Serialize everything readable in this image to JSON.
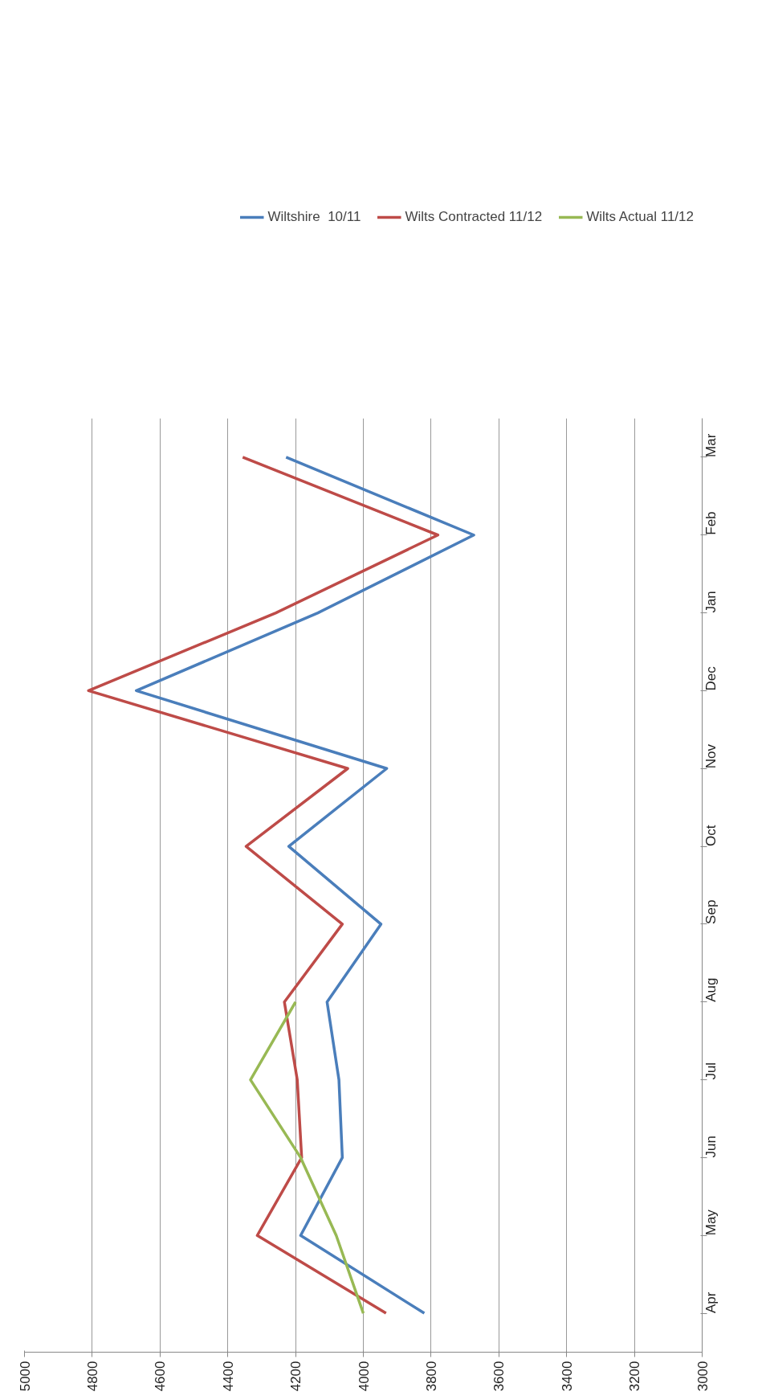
{
  "chart_data": {
    "type": "line",
    "orientation": "horizontal",
    "categories": [
      "Mar",
      "Feb",
      "Jan",
      "Dec",
      "Nov",
      "Oct",
      "Sep",
      "Aug",
      "Jul",
      "Jun",
      "May",
      "Apr"
    ],
    "series": [
      {
        "name": "Wiltshire  10/11",
        "color": "#4a7ebb",
        "values": [
          4228,
          3674,
          4134,
          4670,
          3931,
          4220,
          3948,
          4107,
          4072,
          4062,
          4185,
          3820
        ]
      },
      {
        "name": "Wilts Contracted 11/12",
        "color": "#be4b48",
        "values": [
          4356,
          3780,
          4258,
          4811,
          4046,
          4346,
          4062,
          4233,
          4195,
          4182,
          4313,
          3933
        ]
      },
      {
        "name": "Wilts Actual 11/12",
        "color": "#98b954",
        "values": [
          null,
          null,
          null,
          null,
          null,
          null,
          null,
          4200,
          4333,
          4185,
          4080,
          4000
        ]
      }
    ],
    "xlim": [
      5000,
      3000
    ],
    "xticks": [
      5000,
      4800,
      4600,
      4400,
      4200,
      4000,
      3800,
      3600,
      3400,
      3200,
      3000
    ],
    "grid": "x",
    "legend": "top",
    "marker": "none",
    "line_style": "solid"
  }
}
